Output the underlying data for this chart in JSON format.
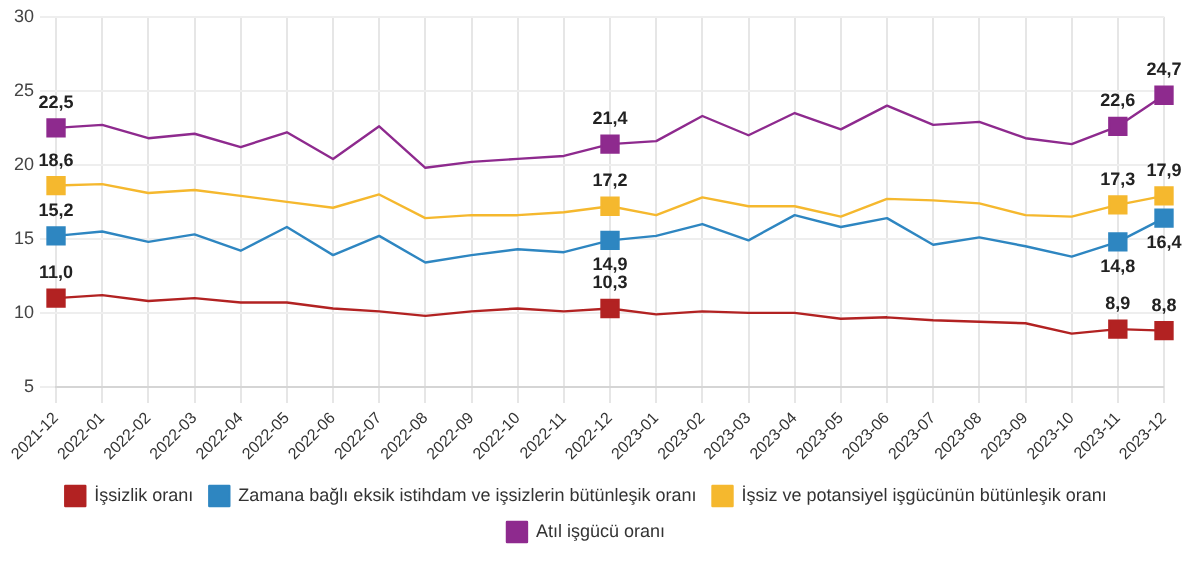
{
  "chart_data": {
    "type": "line",
    "categories": [
      "2021-12",
      "2022-01",
      "2022-02",
      "2022-03",
      "2022-04",
      "2022-05",
      "2022-06",
      "2022-07",
      "2022-08",
      "2022-09",
      "2022-10",
      "2022-11",
      "2022-12",
      "2023-01",
      "2023-02",
      "2023-03",
      "2023-04",
      "2023-05",
      "2023-06",
      "2023-07",
      "2023-08",
      "2023-09",
      "2023-10",
      "2023-11",
      "2023-12"
    ],
    "series": [
      {
        "name": "İşsizlik oranı",
        "color": "#b22222",
        "values": [
          11.0,
          11.2,
          10.8,
          11.0,
          10.7,
          10.7,
          10.3,
          10.1,
          9.8,
          10.1,
          10.3,
          10.1,
          10.3,
          9.9,
          10.1,
          10.0,
          10.0,
          9.6,
          9.7,
          9.5,
          9.4,
          9.3,
          8.6,
          8.9,
          8.8
        ],
        "value_labels": [
          "11,0",
          null,
          null,
          null,
          null,
          null,
          null,
          null,
          null,
          null,
          null,
          null,
          "10,3",
          null,
          null,
          null,
          null,
          null,
          null,
          null,
          null,
          null,
          null,
          "8,9",
          "8,8"
        ]
      },
      {
        "name": "Zamana bağlı eksik istihdam ve işsizlerin bütünleşik oranı",
        "color": "#2e86c1",
        "values": [
          15.2,
          15.5,
          14.8,
          15.3,
          14.2,
          15.8,
          13.9,
          15.2,
          13.4,
          13.9,
          14.3,
          14.1,
          14.9,
          15.2,
          16.0,
          14.9,
          16.6,
          15.8,
          16.4,
          14.6,
          15.1,
          14.5,
          13.8,
          14.8,
          16.4
        ],
        "value_labels": [
          "15,2",
          null,
          null,
          null,
          null,
          null,
          null,
          null,
          null,
          null,
          null,
          null,
          "14,9",
          null,
          null,
          null,
          null,
          null,
          null,
          null,
          null,
          null,
          null,
          "14,8",
          "16,4"
        ]
      },
      {
        "name": "İşsiz ve potansiyel işgücünün bütünleşik oranı",
        "color": "#f5b82e",
        "values": [
          18.6,
          18.7,
          18.1,
          18.3,
          17.9,
          17.5,
          17.1,
          18.0,
          16.4,
          16.6,
          16.6,
          16.8,
          17.2,
          16.6,
          17.8,
          17.2,
          17.2,
          16.5,
          17.7,
          17.6,
          17.4,
          16.6,
          16.5,
          17.3,
          17.9
        ],
        "value_labels": [
          "18,6",
          null,
          null,
          null,
          null,
          null,
          null,
          null,
          null,
          null,
          null,
          null,
          "17,2",
          null,
          null,
          null,
          null,
          null,
          null,
          null,
          null,
          null,
          null,
          "17,3",
          "17,9"
        ]
      },
      {
        "name": "Atıl işgücü oranı",
        "color": "#8e2a8e",
        "values": [
          22.5,
          22.7,
          21.8,
          22.1,
          21.2,
          22.2,
          20.4,
          22.6,
          19.8,
          20.2,
          20.4,
          20.6,
          21.4,
          21.6,
          23.3,
          22.0,
          23.5,
          22.4,
          24.0,
          22.7,
          22.9,
          21.8,
          21.4,
          22.6,
          24.7
        ],
        "value_labels": [
          "22,5",
          null,
          null,
          null,
          null,
          null,
          null,
          null,
          null,
          null,
          null,
          null,
          "21,4",
          null,
          null,
          null,
          null,
          null,
          null,
          null,
          null,
          null,
          null,
          "22,6",
          "24,7"
        ]
      }
    ],
    "ylim": [
      5,
      30
    ],
    "yticks": [
      5,
      10,
      15,
      20,
      25,
      30
    ],
    "grid": true,
    "legend": "bottom"
  }
}
